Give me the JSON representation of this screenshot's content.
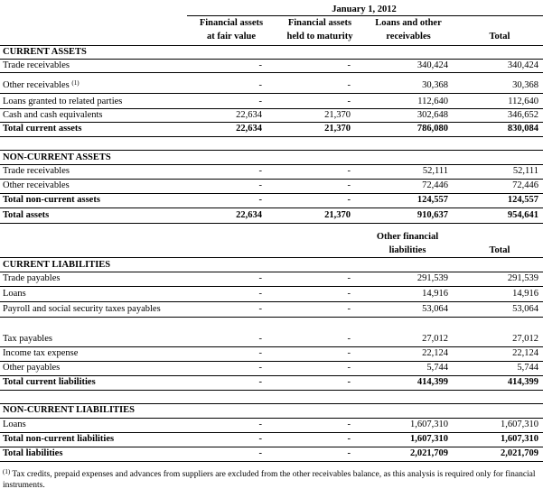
{
  "header": {
    "period": "January 1, 2012",
    "col1": [
      "Financial assets",
      "at fair value"
    ],
    "col2": [
      "Financial assets",
      "held to maturity"
    ],
    "col3": [
      "Loans and other",
      "receivables"
    ],
    "col4": "Total"
  },
  "current_assets": {
    "title": "CURRENT ASSETS",
    "rows": [
      {
        "label": "Trade receivables",
        "fv": "-",
        "htm": "-",
        "loans": "340,424",
        "total": "340,424"
      },
      {
        "label": "Other receivables",
        "sup": "(1)",
        "fv": "-",
        "htm": "-",
        "loans": "30,368",
        "total": "30,368"
      },
      {
        "label": "Loans granted to related parties",
        "fv": "-",
        "htm": "-",
        "loans": "112,640",
        "total": "112,640"
      },
      {
        "label": "Cash and cash equivalents",
        "fv": "22,634",
        "htm": "21,370",
        "loans": "302,648",
        "total": "346,652"
      }
    ],
    "total": {
      "label": "Total current assets",
      "fv": "22,634",
      "htm": "21,370",
      "loans": "786,080",
      "total": "830,084"
    }
  },
  "non_current_assets": {
    "title": "NON-CURRENT ASSETS",
    "rows": [
      {
        "label": "Trade receivables",
        "fv": "-",
        "htm": "-",
        "loans": "52,111",
        "total": "52,111"
      },
      {
        "label": "Other receivables",
        "fv": "-",
        "htm": "-",
        "loans": "72,446",
        "total": "72,446"
      }
    ],
    "total": {
      "label": "Total non-current assets",
      "fv": "-",
      "htm": "-",
      "loans": "124,557",
      "total": "124,557"
    },
    "grand": {
      "label": "Total assets",
      "fv": "22,634",
      "htm": "21,370",
      "loans": "910,637",
      "total": "954,641"
    }
  },
  "liab_header": {
    "col3": [
      "Other financial",
      "liabilities"
    ],
    "col4": "Total"
  },
  "current_liabilities": {
    "title": "CURRENT LIABILITIES",
    "rows": [
      {
        "label": "Trade payables",
        "fv": "-",
        "htm": "-",
        "ofl": "291,539",
        "total": "291,539"
      },
      {
        "label": "Loans",
        "fv": "-",
        "htm": "-",
        "ofl": "14,916",
        "total": "14,916"
      },
      {
        "label": "Payroll and social security taxes payables",
        "fv": "-",
        "htm": "-",
        "ofl": "53,064",
        "total": "53,064"
      },
      {
        "label": "Tax payables",
        "fv": "-",
        "htm": "-",
        "ofl": "27,012",
        "total": "27,012"
      },
      {
        "label": "Income tax expense",
        "fv": "-",
        "htm": "-",
        "ofl": "22,124",
        "total": "22,124"
      },
      {
        "label": "Other payables",
        "fv": "-",
        "htm": "-",
        "ofl": "5,744",
        "total": "5,744"
      }
    ],
    "total": {
      "label": "Total current liabilities",
      "fv": "-",
      "htm": "-",
      "ofl": "414,399",
      "total": "414,399"
    }
  },
  "non_current_liabilities": {
    "title": "NON-CURRENT LIABILITIES",
    "rows": [
      {
        "label": "Loans",
        "fv": "-",
        "htm": "-",
        "ofl": "1,607,310",
        "total": "1,607,310"
      }
    ],
    "total": {
      "label": "Total non-current liabilities",
      "fv": "-",
      "htm": "-",
      "ofl": "1,607,310",
      "total": "1,607,310"
    },
    "grand": {
      "label": "Total liabilities",
      "fv": "-",
      "htm": "-",
      "ofl": "2,021,709",
      "total": "2,021,709"
    }
  },
  "footnote": {
    "sup": "(1)",
    "text": "Tax credits, prepaid expenses and advances from suppliers are excluded from the other receivables balance, as this analysis is required only for financial instruments."
  }
}
